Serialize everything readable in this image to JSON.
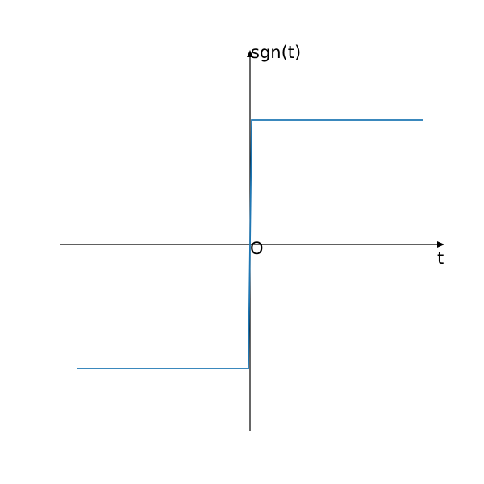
{
  "chart_data": {
    "type": "line",
    "title": "",
    "xlabel": "t",
    "ylabel": "sgn(t)",
    "origin_label": "O",
    "grid": false,
    "xlim": [
      -2.3,
      2.3
    ],
    "ylim": [
      -1.5,
      1.5
    ],
    "series": [
      {
        "color": "#1f77b4",
        "x": [
          -2.1,
          -0.02,
          0.02,
          2.1
        ],
        "y": [
          -1,
          -1,
          1,
          1
        ]
      }
    ]
  }
}
